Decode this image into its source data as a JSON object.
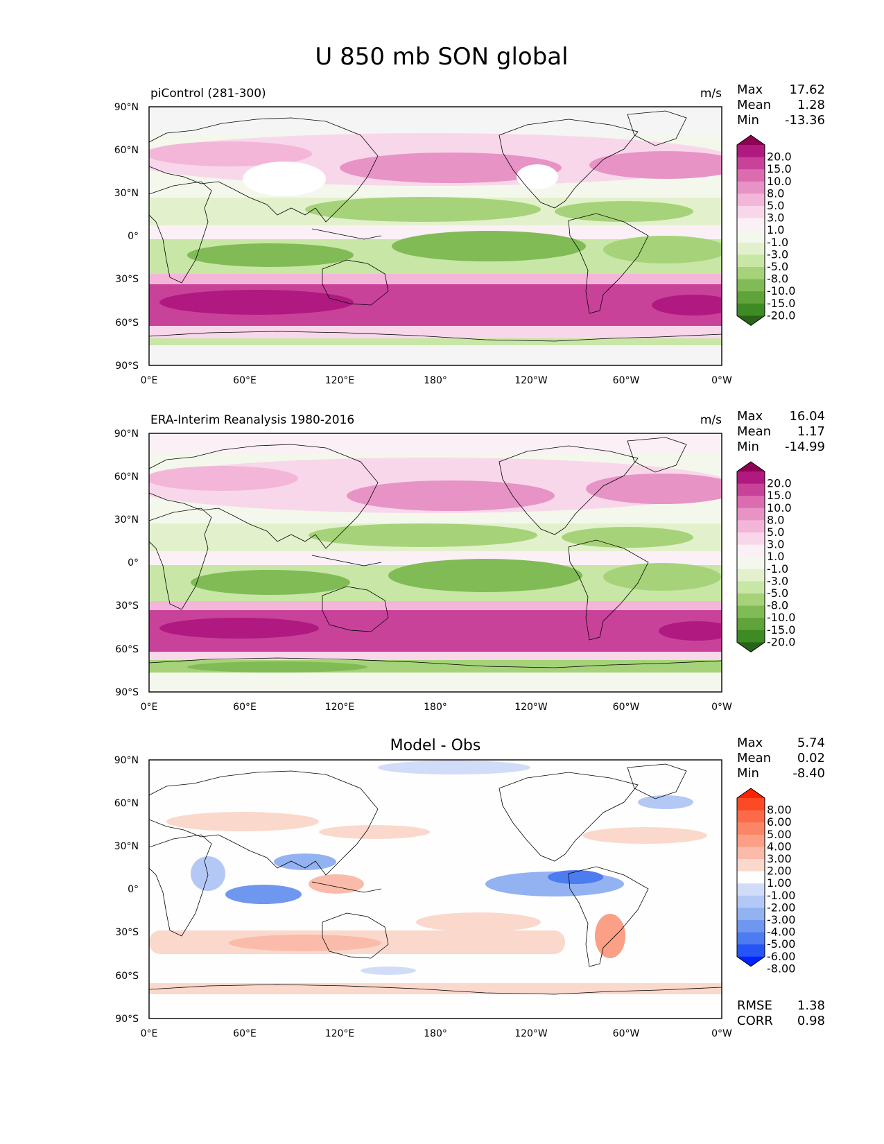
{
  "figure": {
    "title": "U 850 mb SON global"
  },
  "colors": {
    "wind_levels": [
      "#276419",
      "#3e8a23",
      "#5fa33a",
      "#80bb56",
      "#a6d379",
      "#c8e6a5",
      "#e2f1cc",
      "#f3f7ec",
      "#faf0f5",
      "#f9d7ea",
      "#f3b6d9",
      "#e793c6",
      "#dc6cb0",
      "#c8429a",
      "#b01a80",
      "#8e0152"
    ],
    "diff_levels": [
      "#0024ff",
      "#2655f5",
      "#4d7bf0",
      "#6f97ef",
      "#93b2f1",
      "#b3c8f4",
      "#d1ddf8",
      "#fefefe",
      "#fbd8cc",
      "#fbbbaa",
      "#fb9f86",
      "#fb8667",
      "#fc6a48",
      "#fd4a26",
      "#ff2000"
    ],
    "coast": "#000000"
  },
  "axes": {
    "lon_ticks": [
      "0°E",
      "60°E",
      "120°E",
      "180°",
      "120°W",
      "60°W",
      "0°W"
    ],
    "lat_ticks": [
      "90°N",
      "60°N",
      "30°N",
      "0°",
      "30°S",
      "60°S",
      "90°S"
    ]
  },
  "panels": [
    {
      "left_title": "piControl (281-300)",
      "center_title": "",
      "units": "m/s",
      "stats": [
        {
          "label": "Max",
          "value": "17.62"
        },
        {
          "label": "Mean",
          "value": "1.28"
        },
        {
          "label": "Min",
          "value": "-13.36"
        }
      ],
      "colorbar": {
        "labels": [
          "20.0",
          "15.0",
          "10.0",
          "8.0",
          "5.0",
          "3.0",
          "1.0",
          "-1.0",
          "-3.0",
          "-5.0",
          "-8.0",
          "-10.0",
          "-15.0",
          "-20.0"
        ],
        "palette": "wind_levels"
      },
      "extra_stats": []
    },
    {
      "left_title": "ERA-Interim Reanalysis 1980-2016",
      "center_title": "",
      "units": "m/s",
      "stats": [
        {
          "label": "Max",
          "value": "16.04"
        },
        {
          "label": "Mean",
          "value": "1.17"
        },
        {
          "label": "Min",
          "value": "-14.99"
        }
      ],
      "colorbar": {
        "labels": [
          "20.0",
          "15.0",
          "10.0",
          "8.0",
          "5.0",
          "3.0",
          "1.0",
          "-1.0",
          "-3.0",
          "-5.0",
          "-8.0",
          "-10.0",
          "-15.0",
          "-20.0"
        ],
        "palette": "wind_levels"
      },
      "extra_stats": []
    },
    {
      "left_title": "",
      "center_title": "Model - Obs",
      "units": "",
      "stats": [
        {
          "label": "Max",
          "value": "5.74"
        },
        {
          "label": "Mean",
          "value": "0.02"
        },
        {
          "label": "Min",
          "value": "-8.40"
        }
      ],
      "colorbar": {
        "labels": [
          "8.00",
          "6.00",
          "5.00",
          "4.00",
          "3.00",
          "2.00",
          "1.00",
          "-1.00",
          "-2.00",
          "-3.00",
          "-4.00",
          "-5.00",
          "-6.00",
          "-8.00"
        ],
        "palette": "diff_levels"
      },
      "extra_stats": [
        {
          "label": "RMSE",
          "value": "1.38"
        },
        {
          "label": "CORR",
          "value": "0.98"
        }
      ]
    }
  ]
}
